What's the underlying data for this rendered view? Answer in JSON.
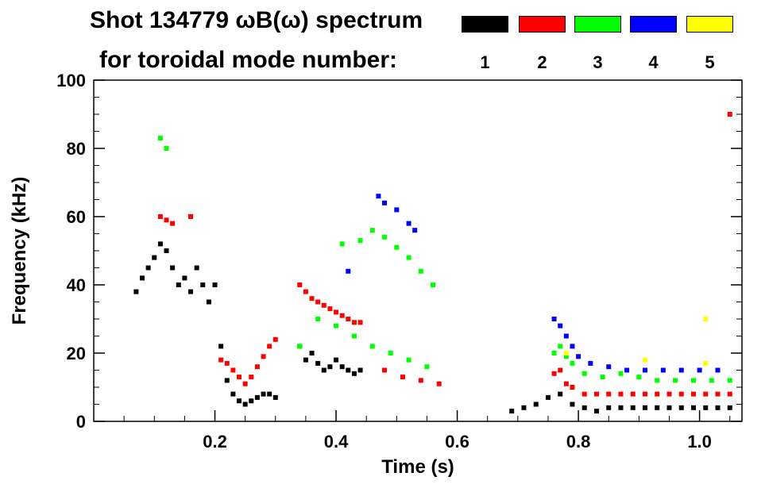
{
  "legend": {
    "title_line1": "Shot 134779 ωB(ω) spectrum",
    "title_line2": "for toroidal mode number:",
    "modes": [
      {
        "label": "1",
        "color": "#000000"
      },
      {
        "label": "2",
        "color": "#ff0000"
      },
      {
        "label": "3",
        "color": "#00ff00"
      },
      {
        "label": "4",
        "color": "#0000ff"
      },
      {
        "label": "5",
        "color": "#ffff00"
      }
    ]
  },
  "chart_data": {
    "type": "scatter",
    "title": "Shot 134779 ωB(ω) spectrum",
    "xlabel": "Time (s)",
    "ylabel": "Frequency (kHz)",
    "xlim": [
      0.0,
      1.07
    ],
    "ylim": [
      0,
      100
    ],
    "xticks": [
      0.2,
      0.4,
      0.6,
      0.8,
      1.0
    ],
    "xtick_labels": [
      "0.2",
      "0.4",
      "0.6",
      "0.8",
      "1.0"
    ],
    "yticks": [
      0,
      20,
      40,
      60,
      80,
      100
    ],
    "ytick_labels": [
      "0",
      "20",
      "40",
      "60",
      "80",
      "100"
    ],
    "series": [
      {
        "name": "n=1",
        "color": "#000000",
        "points": [
          [
            0.07,
            38
          ],
          [
            0.08,
            42
          ],
          [
            0.09,
            45
          ],
          [
            0.1,
            48
          ],
          [
            0.11,
            52
          ],
          [
            0.12,
            50
          ],
          [
            0.13,
            45
          ],
          [
            0.14,
            40
          ],
          [
            0.15,
            42
          ],
          [
            0.16,
            38
          ],
          [
            0.17,
            45
          ],
          [
            0.18,
            40
          ],
          [
            0.19,
            35
          ],
          [
            0.2,
            40
          ],
          [
            0.21,
            22
          ],
          [
            0.22,
            12
          ],
          [
            0.23,
            8
          ],
          [
            0.24,
            6
          ],
          [
            0.25,
            5
          ],
          [
            0.26,
            6
          ],
          [
            0.27,
            7
          ],
          [
            0.28,
            8
          ],
          [
            0.29,
            8
          ],
          [
            0.3,
            7
          ],
          [
            0.34,
            22
          ],
          [
            0.35,
            18
          ],
          [
            0.36,
            20
          ],
          [
            0.37,
            17
          ],
          [
            0.38,
            15
          ],
          [
            0.39,
            16
          ],
          [
            0.4,
            18
          ],
          [
            0.41,
            16
          ],
          [
            0.42,
            15
          ],
          [
            0.43,
            14
          ],
          [
            0.44,
            15
          ],
          [
            0.69,
            3
          ],
          [
            0.71,
            4
          ],
          [
            0.73,
            5
          ],
          [
            0.75,
            7
          ],
          [
            0.77,
            8
          ],
          [
            0.79,
            5
          ],
          [
            0.81,
            4
          ],
          [
            0.83,
            3
          ],
          [
            0.85,
            4
          ],
          [
            0.87,
            4
          ],
          [
            0.89,
            4
          ],
          [
            0.91,
            4
          ],
          [
            0.93,
            4
          ],
          [
            0.95,
            4
          ],
          [
            0.97,
            4
          ],
          [
            0.99,
            4
          ],
          [
            1.01,
            4
          ],
          [
            1.03,
            4
          ],
          [
            1.05,
            4
          ]
        ]
      },
      {
        "name": "n=2",
        "color": "#ff0000",
        "points": [
          [
            0.11,
            60
          ],
          [
            0.12,
            59
          ],
          [
            0.13,
            58
          ],
          [
            0.16,
            60
          ],
          [
            0.21,
            18
          ],
          [
            0.22,
            17
          ],
          [
            0.23,
            15
          ],
          [
            0.24,
            13
          ],
          [
            0.25,
            11
          ],
          [
            0.26,
            13
          ],
          [
            0.27,
            16
          ],
          [
            0.28,
            19
          ],
          [
            0.29,
            22
          ],
          [
            0.3,
            24
          ],
          [
            0.34,
            40
          ],
          [
            0.35,
            38
          ],
          [
            0.36,
            36
          ],
          [
            0.37,
            35
          ],
          [
            0.38,
            34
          ],
          [
            0.39,
            33
          ],
          [
            0.4,
            32
          ],
          [
            0.41,
            31
          ],
          [
            0.42,
            30
          ],
          [
            0.43,
            29
          ],
          [
            0.44,
            29
          ],
          [
            0.48,
            15
          ],
          [
            0.51,
            13
          ],
          [
            0.54,
            12
          ],
          [
            0.57,
            11
          ],
          [
            0.76,
            14
          ],
          [
            0.77,
            15
          ],
          [
            0.78,
            11
          ],
          [
            0.79,
            10
          ],
          [
            0.81,
            8
          ],
          [
            0.83,
            8
          ],
          [
            0.85,
            8
          ],
          [
            0.87,
            8
          ],
          [
            0.89,
            8
          ],
          [
            0.91,
            8
          ],
          [
            0.93,
            8
          ],
          [
            0.95,
            8
          ],
          [
            0.97,
            8
          ],
          [
            0.99,
            8
          ],
          [
            1.01,
            8
          ],
          [
            1.03,
            8
          ],
          [
            1.05,
            8
          ],
          [
            1.05,
            90
          ]
        ]
      },
      {
        "name": "n=3",
        "color": "#00ff00",
        "points": [
          [
            0.11,
            83
          ],
          [
            0.12,
            80
          ],
          [
            0.34,
            22
          ],
          [
            0.37,
            30
          ],
          [
            0.4,
            28
          ],
          [
            0.43,
            25
          ],
          [
            0.46,
            22
          ],
          [
            0.49,
            20
          ],
          [
            0.52,
            18
          ],
          [
            0.55,
            16
          ],
          [
            0.41,
            52
          ],
          [
            0.44,
            53
          ],
          [
            0.46,
            56
          ],
          [
            0.48,
            54
          ],
          [
            0.5,
            51
          ],
          [
            0.52,
            48
          ],
          [
            0.54,
            44
          ],
          [
            0.56,
            40
          ],
          [
            0.76,
            20
          ],
          [
            0.77,
            22
          ],
          [
            0.78,
            19
          ],
          [
            0.79,
            17
          ],
          [
            0.81,
            14
          ],
          [
            0.84,
            13
          ],
          [
            0.87,
            14
          ],
          [
            0.9,
            13
          ],
          [
            0.93,
            12
          ],
          [
            0.96,
            12
          ],
          [
            0.99,
            12
          ],
          [
            1.02,
            12
          ],
          [
            1.05,
            12
          ]
        ]
      },
      {
        "name": "n=4",
        "color": "#0000ff",
        "points": [
          [
            0.42,
            44
          ],
          [
            0.47,
            66
          ],
          [
            0.48,
            64
          ],
          [
            0.5,
            62
          ],
          [
            0.52,
            58
          ],
          [
            0.53,
            56
          ],
          [
            0.76,
            30
          ],
          [
            0.77,
            28
          ],
          [
            0.78,
            25
          ],
          [
            0.79,
            22
          ],
          [
            0.8,
            19
          ],
          [
            0.82,
            17
          ],
          [
            0.85,
            16
          ],
          [
            0.88,
            15
          ],
          [
            0.91,
            15
          ],
          [
            0.94,
            15
          ],
          [
            0.97,
            15
          ],
          [
            1.0,
            15
          ],
          [
            1.03,
            15
          ]
        ]
      },
      {
        "name": "n=5",
        "color": "#ffff00",
        "points": [
          [
            0.78,
            20
          ],
          [
            0.91,
            18
          ],
          [
            1.01,
            30
          ],
          [
            1.01,
            17
          ]
        ]
      }
    ]
  }
}
